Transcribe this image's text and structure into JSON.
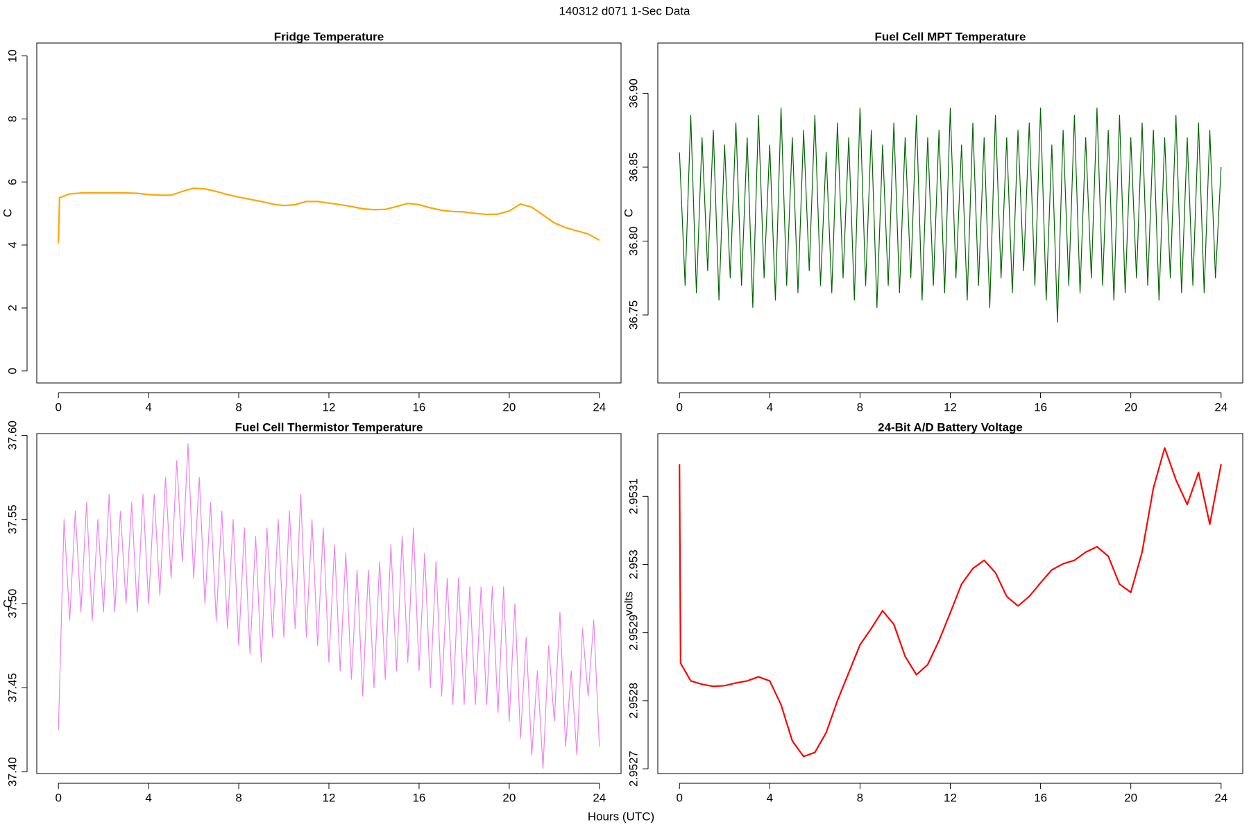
{
  "title": "140312   d071   1-Sec Data",
  "xlabel": "Hours (UTC)",
  "chart_data": [
    {
      "type": "line",
      "title": "Fridge Temperature",
      "ylabel": "C",
      "color": "#ffa500",
      "x": [
        0,
        0.05,
        0.5,
        1,
        1.5,
        2,
        2.5,
        3,
        3.5,
        4,
        4.5,
        5,
        5.5,
        6,
        6.5,
        7,
        7.5,
        8,
        8.5,
        9,
        9.5,
        10,
        10.5,
        11,
        11.5,
        12,
        12.5,
        13,
        13.5,
        14,
        14.5,
        15,
        15.5,
        16,
        16.5,
        17,
        17.5,
        18,
        18.5,
        19,
        19.5,
        20,
        20.5,
        21,
        21.5,
        22,
        22.5,
        23,
        23.5,
        24
      ],
      "values": [
        4.05,
        5.5,
        5.62,
        5.65,
        5.65,
        5.65,
        5.65,
        5.65,
        5.64,
        5.6,
        5.58,
        5.58,
        5.7,
        5.8,
        5.78,
        5.7,
        5.6,
        5.52,
        5.45,
        5.38,
        5.3,
        5.25,
        5.28,
        5.38,
        5.38,
        5.33,
        5.28,
        5.22,
        5.15,
        5.12,
        5.13,
        5.22,
        5.32,
        5.28,
        5.18,
        5.1,
        5.06,
        5.05,
        5.0,
        4.97,
        4.98,
        5.08,
        5.3,
        5.2,
        4.95,
        4.7,
        4.55,
        4.45,
        4.35,
        4.15
      ],
      "xlim": [
        -0.96,
        24.96
      ],
      "xticks": [
        0,
        4,
        8,
        12,
        16,
        20,
        24
      ],
      "ylim": [
        -0.38,
        10.41
      ],
      "yticks": [
        0,
        2,
        4,
        6,
        8,
        10
      ]
    },
    {
      "type": "line",
      "title": "Fuel Cell MPT Temperature",
      "ylabel": "C",
      "color": "#006400",
      "x": [
        0,
        0.25,
        0.5,
        0.75,
        1,
        1.25,
        1.5,
        1.75,
        2,
        2.25,
        2.5,
        2.75,
        3,
        3.25,
        3.5,
        3.75,
        4,
        4.25,
        4.5,
        4.75,
        5,
        5.25,
        5.5,
        5.75,
        6,
        6.25,
        6.5,
        6.75,
        7,
        7.25,
        7.5,
        7.75,
        8,
        8.25,
        8.5,
        8.75,
        9,
        9.25,
        9.5,
        9.75,
        10,
        10.25,
        10.5,
        10.75,
        11,
        11.25,
        11.5,
        11.75,
        12,
        12.25,
        12.5,
        12.75,
        13,
        13.25,
        13.5,
        13.75,
        14,
        14.25,
        14.5,
        14.75,
        15,
        15.25,
        15.5,
        15.75,
        16,
        16.25,
        16.5,
        16.75,
        17,
        17.25,
        17.5,
        17.75,
        18,
        18.25,
        18.5,
        18.75,
        19,
        19.25,
        19.5,
        19.75,
        20,
        20.25,
        20.5,
        20.75,
        21,
        21.25,
        21.5,
        21.75,
        22,
        22.25,
        22.5,
        22.75,
        23,
        23.25,
        23.5,
        23.75,
        24
      ],
      "values": [
        36.86,
        36.77,
        36.885,
        36.765,
        36.87,
        36.78,
        36.875,
        36.76,
        36.865,
        36.775,
        36.88,
        36.77,
        36.87,
        36.755,
        36.885,
        36.775,
        36.865,
        36.76,
        36.89,
        36.77,
        36.87,
        36.765,
        36.875,
        36.78,
        36.885,
        36.77,
        36.86,
        36.765,
        36.88,
        36.775,
        36.87,
        36.76,
        36.89,
        36.77,
        36.875,
        36.755,
        36.865,
        36.77,
        36.88,
        36.765,
        36.87,
        36.775,
        36.885,
        36.76,
        36.87,
        36.77,
        36.875,
        36.765,
        36.89,
        36.775,
        36.865,
        36.76,
        36.88,
        36.77,
        36.87,
        36.755,
        36.885,
        36.775,
        36.87,
        36.765,
        36.875,
        36.78,
        36.88,
        36.77,
        36.89,
        36.76,
        36.865,
        36.745,
        36.875,
        36.77,
        36.885,
        36.765,
        36.87,
        36.775,
        36.89,
        36.77,
        36.875,
        36.76,
        36.885,
        36.765,
        36.87,
        36.775,
        36.88,
        36.77,
        36.875,
        36.76,
        36.87,
        36.775,
        36.885,
        36.765,
        36.87,
        36.77,
        36.88,
        36.765,
        36.875,
        36.775,
        36.85
      ],
      "xlim": [
        -0.96,
        24.96
      ],
      "xticks": [
        0,
        4,
        8,
        12,
        16,
        20,
        24
      ],
      "ylim": [
        36.704,
        36.934
      ],
      "yticks": [
        36.75,
        {
          "value": 36.8,
          "label": "36.80"
        },
        36.85,
        {
          "value": 36.9,
          "label": "36.90"
        }
      ]
    },
    {
      "type": "line",
      "title": "Fuel Cell Thermistor Temperature",
      "ylabel": "C",
      "color": "#ee82ee",
      "x": [
        0,
        0.25,
        0.5,
        0.75,
        1,
        1.25,
        1.5,
        1.75,
        2,
        2.25,
        2.5,
        2.75,
        3,
        3.25,
        3.5,
        3.75,
        4,
        4.25,
        4.5,
        4.75,
        5,
        5.25,
        5.5,
        5.75,
        6,
        6.25,
        6.5,
        6.75,
        7,
        7.25,
        7.5,
        7.75,
        8,
        8.25,
        8.5,
        8.75,
        9,
        9.25,
        9.5,
        9.75,
        10,
        10.25,
        10.5,
        10.75,
        11,
        11.25,
        11.5,
        11.75,
        12,
        12.25,
        12.5,
        12.75,
        13,
        13.25,
        13.5,
        13.75,
        14,
        14.25,
        14.5,
        14.75,
        15,
        15.25,
        15.5,
        15.75,
        16,
        16.25,
        16.5,
        16.75,
        17,
        17.25,
        17.5,
        17.75,
        18,
        18.25,
        18.5,
        18.75,
        19,
        19.25,
        19.5,
        19.75,
        20,
        20.25,
        20.5,
        20.75,
        21,
        21.25,
        21.5,
        21.75,
        22,
        22.25,
        22.5,
        22.75,
        23,
        23.25,
        23.5,
        23.75,
        24
      ],
      "values": [
        37.425,
        37.55,
        37.49,
        37.555,
        37.495,
        37.56,
        37.49,
        37.55,
        37.495,
        37.565,
        37.495,
        37.555,
        37.5,
        37.56,
        37.495,
        37.565,
        37.5,
        37.565,
        37.505,
        37.575,
        37.515,
        37.585,
        37.525,
        37.595,
        37.515,
        37.575,
        37.5,
        37.56,
        37.49,
        37.555,
        37.485,
        37.55,
        37.475,
        37.545,
        37.47,
        37.54,
        37.465,
        37.545,
        37.48,
        37.55,
        37.48,
        37.555,
        37.485,
        37.565,
        37.48,
        37.55,
        37.475,
        37.545,
        37.465,
        37.535,
        37.46,
        37.53,
        37.455,
        37.52,
        37.445,
        37.52,
        37.45,
        37.525,
        37.455,
        37.535,
        37.46,
        37.54,
        37.465,
        37.545,
        37.46,
        37.53,
        37.45,
        37.525,
        37.445,
        37.515,
        37.44,
        37.515,
        37.44,
        37.51,
        37.44,
        37.51,
        37.44,
        37.51,
        37.435,
        37.51,
        37.43,
        37.5,
        37.42,
        37.48,
        37.41,
        37.46,
        37.402,
        37.475,
        37.43,
        37.495,
        37.415,
        37.46,
        37.41,
        37.485,
        37.445,
        37.49,
        37.415
      ],
      "xlim": [
        -0.96,
        24.96
      ],
      "xticks": [
        0,
        4,
        8,
        12,
        16,
        20,
        24
      ],
      "ylim": [
        37.399,
        37.601
      ],
      "yticks": [
        {
          "value": 37.4,
          "label": "37.40"
        },
        37.45,
        {
          "value": 37.5,
          "label": "37.50"
        },
        37.55,
        {
          "value": 37.6,
          "label": "37.60"
        }
      ]
    },
    {
      "type": "line",
      "title": "24-Bit A/D Battery Voltage",
      "ylabel": "volts",
      "color": "#ff0000",
      "x": [
        0,
        0.05,
        0.5,
        1,
        1.5,
        2,
        2.5,
        3,
        3.5,
        4,
        4.5,
        5,
        5.5,
        6,
        6.5,
        7,
        7.5,
        8,
        8.5,
        9,
        9.5,
        10,
        10.5,
        11,
        11.5,
        12,
        12.5,
        13,
        13.5,
        14,
        14.5,
        15,
        15.5,
        16,
        16.5,
        17,
        17.5,
        18,
        18.5,
        19,
        19.5,
        20,
        20.5,
        21,
        21.5,
        22,
        22.5,
        23,
        23.5,
        24
      ],
      "values": [
        2.953147,
        2.952855,
        2.952829,
        2.952824,
        2.952821,
        2.952822,
        2.952826,
        2.952829,
        2.952835,
        2.952829,
        2.952794,
        2.952741,
        2.952718,
        2.952724,
        2.952753,
        2.9528,
        2.952841,
        2.952882,
        2.952906,
        2.952932,
        2.952912,
        2.952865,
        2.952838,
        2.952853,
        2.952888,
        2.952929,
        2.952971,
        2.952994,
        2.953006,
        2.952988,
        2.952953,
        2.952939,
        2.952953,
        2.952973,
        2.952992,
        2.953001,
        2.953006,
        2.953018,
        2.953026,
        2.953012,
        2.952971,
        2.952959,
        2.953018,
        2.953112,
        2.953171,
        2.953124,
        2.953088,
        2.953135,
        2.953059,
        2.953147
      ],
      "xlim": [
        -0.96,
        24.96
      ],
      "xticks": [
        0,
        4,
        8,
        12,
        16,
        20,
        24
      ],
      "ylim": [
        2.952693,
        2.953192
      ],
      "yticks": [
        2.9527,
        2.9528,
        2.9529,
        2.953,
        2.9531
      ]
    }
  ]
}
